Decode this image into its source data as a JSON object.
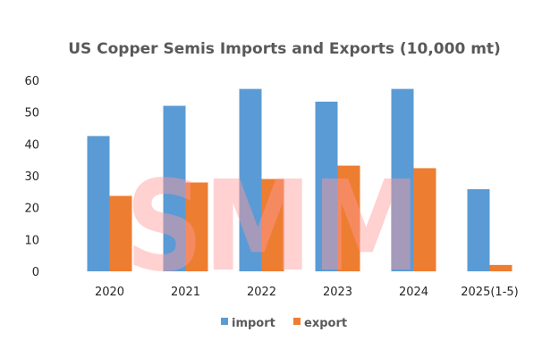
{
  "chart_data": {
    "type": "bar",
    "title": "US Copper Semis Imports and Exports (10,000 mt)",
    "categories": [
      "2020",
      "2021",
      "2022",
      "2023",
      "2024",
      "2025(1-5)"
    ],
    "series": [
      {
        "name": "import",
        "color": "#5B9BD5",
        "values": [
          42.5,
          52,
          57.3,
          53.3,
          57.3,
          25.8
        ]
      },
      {
        "name": "export",
        "color": "#ED7D31",
        "values": [
          23.7,
          27.9,
          29,
          33.2,
          32.4,
          2
        ]
      }
    ],
    "ylim": [
      0,
      60
    ],
    "yticks": [
      0,
      10,
      20,
      30,
      40,
      50,
      60
    ],
    "xlabel": "",
    "ylabel": "",
    "grid": false,
    "legend": "bottom"
  },
  "watermark": {
    "text": "SMM",
    "color": "#FF9999"
  }
}
